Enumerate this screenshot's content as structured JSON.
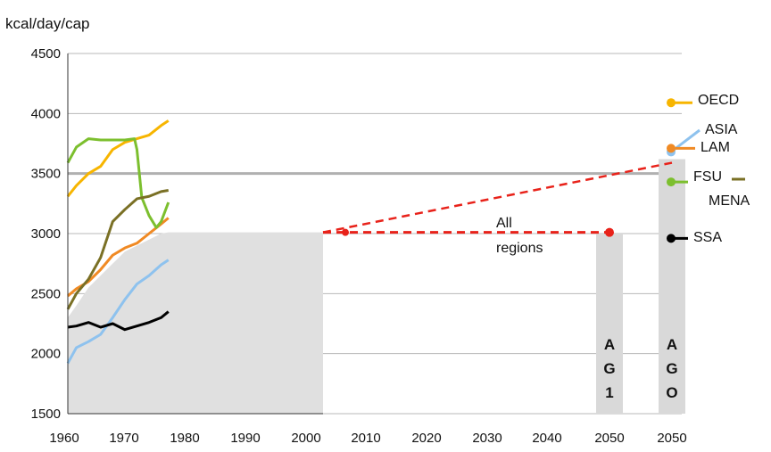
{
  "chart_data": {
    "type": "line",
    "title": "",
    "ylabel": "kcal/day/cap",
    "xlabel": "",
    "ylim": [
      1500,
      4500
    ],
    "xlim": [
      1960,
      2003
    ],
    "y_ticks": [
      "4500",
      "4000",
      "3500",
      "3000",
      "2500",
      "2000",
      "1500"
    ],
    "x_ticks": [
      "1960",
      "1970",
      "1980",
      "1990",
      "2000",
      "2010",
      "2020",
      "2030",
      "2040",
      "2050",
      "2050"
    ],
    "grid": "horizontal",
    "series": [
      {
        "name": "OECD",
        "color": "#f7b500",
        "x": [
          1961,
          1965,
          1970,
          1975,
          1980,
          1985,
          1990,
          1995,
          2000,
          2003
        ],
        "values": [
          3310,
          3400,
          3500,
          3560,
          3700,
          3760,
          3790,
          3820,
          3900,
          3940
        ],
        "end_label": "OECD",
        "end_value_2050": 4090
      },
      {
        "name": "ASIA",
        "color": "#8ec2ee",
        "x": [
          1961,
          1965,
          1970,
          1975,
          1980,
          1985,
          1990,
          1995,
          2000,
          2003
        ],
        "values": [
          1920,
          2050,
          2100,
          2160,
          2300,
          2450,
          2580,
          2650,
          2740,
          2780
        ],
        "end_label": "ASIA",
        "end_value_2050": 3680
      },
      {
        "name": "LAM",
        "color": "#f08a24",
        "x": [
          1961,
          1965,
          1970,
          1975,
          1980,
          1985,
          1990,
          1995,
          2000,
          2003
        ],
        "values": [
          2480,
          2540,
          2600,
          2700,
          2820,
          2880,
          2920,
          3000,
          3080,
          3130
        ],
        "end_label": "LAM",
        "end_value_2050": 3710
      },
      {
        "name": "FSU",
        "color": "#7cbf2e",
        "x": [
          1961,
          1965,
          1970,
          1975,
          1980,
          1985,
          1989,
          1990,
          1992,
          1995,
          1998,
          2000,
          2003
        ],
        "values": [
          3590,
          3720,
          3790,
          3780,
          3780,
          3780,
          3790,
          3700,
          3300,
          3150,
          3050,
          3100,
          3260
        ],
        "end_label": "FSU",
        "end_value_2050": 3430
      },
      {
        "name": "MENA",
        "color": "#7a7025",
        "x": [
          1961,
          1965,
          1970,
          1975,
          1980,
          1985,
          1990,
          1995,
          2000,
          2003
        ],
        "values": [
          2370,
          2500,
          2620,
          2800,
          3100,
          3200,
          3290,
          3310,
          3350,
          3360
        ],
        "end_label": "MENA",
        "end_value_2050": 3440
      },
      {
        "name": "SSA",
        "color": "#000000",
        "x": [
          1961,
          1965,
          1970,
          1975,
          1980,
          1985,
          1990,
          1995,
          2000,
          2003
        ],
        "values": [
          2220,
          2230,
          2260,
          2220,
          2250,
          2200,
          2230,
          2260,
          2300,
          2350
        ],
        "end_label": "SSA",
        "end_value_2050": 2960
      }
    ],
    "all_regions": {
      "label": "All\nregions",
      "label_line1": "All",
      "label_line2": "regions",
      "color": "#e8221a",
      "fill": "#e0e0e0",
      "x": [
        1961,
        1965,
        1970,
        1975,
        1980,
        1985,
        1990,
        1995,
        2000,
        2003
      ],
      "values": [
        2300,
        2400,
        2550,
        2650,
        2750,
        2850,
        2900,
        2950,
        3000,
        3010
      ],
      "projection_2050": 3010,
      "projection_upper_2050": 3590
    },
    "projection_bars": [
      {
        "label_lines": [
          "A",
          "G",
          "1"
        ],
        "value": 3000,
        "color": "#d9d9d9"
      },
      {
        "label_lines": [
          "A",
          "G",
          "O"
        ],
        "value": 3620,
        "color": "#d9d9d9"
      }
    ]
  }
}
